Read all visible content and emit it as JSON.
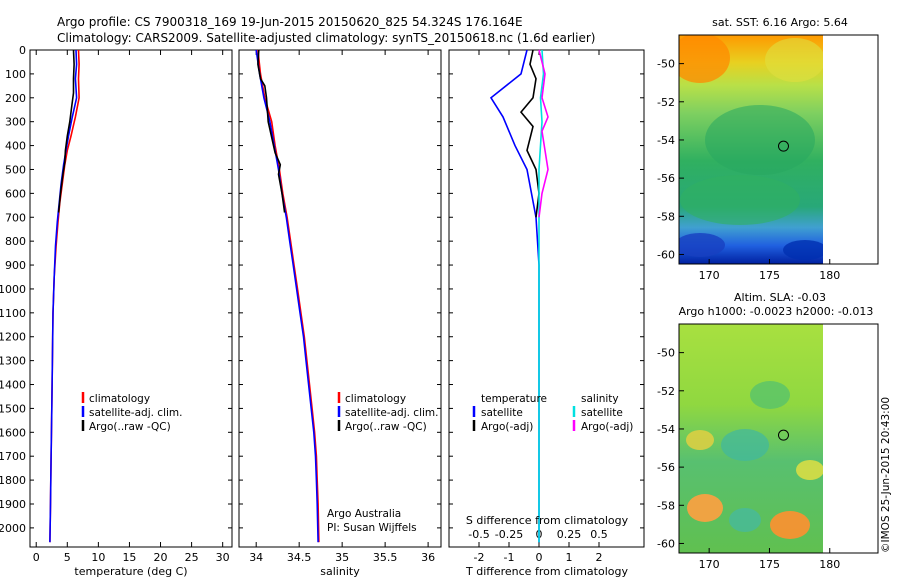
{
  "header": {
    "line1": "Argo profile: CS 7900318_169 19-Jun-2015 20150620_825 54.324S 176.164E",
    "line2": "Climatology: CARS2009. Satellite-adjusted climatology: synTS_20150618.nc (1.6d earlier)"
  },
  "credit": {
    "org": "Argo Australia",
    "pi": "PI: Susan Wijffels",
    "stamp": "©IMOS 25-Jun-2015 20:43:00"
  },
  "colors": {
    "climatology": "#ff0000",
    "satellite": "#0000ff",
    "argo": "#000000",
    "salinity_satellite": "#00e0e0",
    "salinity_argo": "#ff00ff"
  },
  "chart_data": [
    {
      "type": "line",
      "name": "temperature-profile",
      "xlabel": "temperature (deg C)",
      "xlim": [
        -1,
        31.5
      ],
      "xticks": [
        0,
        5,
        10,
        15,
        20,
        25,
        30
      ],
      "ylim": [
        0,
        2080
      ],
      "yticks": [
        0,
        100,
        200,
        300,
        400,
        500,
        600,
        700,
        800,
        900,
        1000,
        1100,
        1200,
        1300,
        1400,
        1500,
        1600,
        1700,
        1800,
        1900,
        2000
      ],
      "legend": [
        "climatology",
        "satellite-adj. clim.",
        "Argo(..raw -QC)"
      ],
      "series": [
        {
          "name": "climatology",
          "color": "#ff0000",
          "points": [
            [
              6.8,
              0
            ],
            [
              6.9,
              60
            ],
            [
              6.8,
              120
            ],
            [
              6.9,
              200
            ],
            [
              6.3,
              280
            ],
            [
              5.6,
              360
            ],
            [
              5.0,
              420
            ],
            [
              4.6,
              480
            ],
            [
              4.2,
              560
            ],
            [
              3.8,
              640
            ],
            [
              3.5,
              720
            ],
            [
              3.2,
              820
            ],
            [
              2.9,
              950
            ],
            [
              2.7,
              1100
            ],
            [
              2.6,
              1300
            ],
            [
              2.5,
              1500
            ],
            [
              2.4,
              1700
            ],
            [
              2.3,
              1900
            ],
            [
              2.2,
              2060
            ]
          ]
        },
        {
          "name": "satellite-adj. clim.",
          "color": "#0000ff",
          "points": [
            [
              6.4,
              0
            ],
            [
              6.5,
              60
            ],
            [
              6.3,
              120
            ],
            [
              6.5,
              200
            ],
            [
              5.8,
              280
            ],
            [
              5.2,
              360
            ],
            [
              4.8,
              420
            ],
            [
              4.4,
              480
            ],
            [
              4.0,
              560
            ],
            [
              3.7,
              640
            ],
            [
              3.4,
              720
            ],
            [
              3.1,
              820
            ],
            [
              2.9,
              950
            ],
            [
              2.7,
              1100
            ],
            [
              2.6,
              1300
            ],
            [
              2.5,
              1500
            ],
            [
              2.4,
              1700
            ],
            [
              2.3,
              1900
            ],
            [
              2.2,
              2060
            ]
          ]
        },
        {
          "name": "Argo(..raw -QC)",
          "color": "#000000",
          "points": [
            [
              6.0,
              0
            ],
            [
              6.1,
              60
            ],
            [
              6.0,
              120
            ],
            [
              6.0,
              180
            ],
            [
              5.7,
              240
            ],
            [
              5.4,
              300
            ],
            [
              5.0,
              360
            ],
            [
              4.7,
              420
            ],
            [
              4.6,
              470
            ],
            [
              4.3,
              520
            ],
            [
              3.9,
              600
            ],
            [
              3.6,
              680
            ]
          ]
        }
      ]
    },
    {
      "type": "line",
      "name": "salinity-profile",
      "xlabel": "salinity",
      "xlim": [
        33.8,
        36.15
      ],
      "xticks": [
        34,
        34.5,
        35,
        35.5,
        36
      ],
      "ylim": [
        0,
        2080
      ],
      "legend": [
        "climatology",
        "satellite-adj. clim.",
        "Argo(..raw -QC)"
      ],
      "series": [
        {
          "name": "climatology",
          "color": "#ff0000",
          "points": [
            [
              34.02,
              0
            ],
            [
              34.05,
              100
            ],
            [
              34.1,
              200
            ],
            [
              34.18,
              300
            ],
            [
              34.22,
              400
            ],
            [
              34.27,
              500
            ],
            [
              34.31,
              600
            ],
            [
              34.36,
              700
            ],
            [
              34.4,
              800
            ],
            [
              34.44,
              900
            ],
            [
              34.48,
              1000
            ],
            [
              34.52,
              1100
            ],
            [
              34.56,
              1200
            ],
            [
              34.59,
              1300
            ],
            [
              34.62,
              1400
            ],
            [
              34.65,
              1500
            ],
            [
              34.68,
              1600
            ],
            [
              34.7,
              1700
            ],
            [
              34.71,
              1800
            ],
            [
              34.72,
              1900
            ],
            [
              34.73,
              2060
            ]
          ]
        },
        {
          "name": "satellite-adj. clim.",
          "color": "#0000ff",
          "points": [
            [
              34.0,
              0
            ],
            [
              34.04,
              100
            ],
            [
              34.09,
              200
            ],
            [
              34.16,
              300
            ],
            [
              34.21,
              400
            ],
            [
              34.26,
              500
            ],
            [
              34.3,
              600
            ],
            [
              34.35,
              700
            ],
            [
              34.39,
              800
            ],
            [
              34.43,
              900
            ],
            [
              34.47,
              1000
            ],
            [
              34.51,
              1100
            ],
            [
              34.55,
              1200
            ],
            [
              34.58,
              1300
            ],
            [
              34.61,
              1400
            ],
            [
              34.64,
              1500
            ],
            [
              34.67,
              1600
            ],
            [
              34.69,
              1700
            ],
            [
              34.7,
              1800
            ],
            [
              34.71,
              1900
            ],
            [
              34.72,
              2060
            ]
          ]
        },
        {
          "name": "Argo(..raw -QC)",
          "color": "#000000",
          "points": [
            [
              34.03,
              0
            ],
            [
              34.02,
              60
            ],
            [
              34.05,
              120
            ],
            [
              34.1,
              150
            ],
            [
              34.12,
              200
            ],
            [
              34.14,
              300
            ],
            [
              34.22,
              430
            ],
            [
              34.28,
              480
            ],
            [
              34.26,
              520
            ],
            [
              34.3,
              600
            ],
            [
              34.33,
              680
            ]
          ]
        }
      ]
    },
    {
      "type": "line",
      "name": "difference-profile",
      "xlabel": "T difference from climatology",
      "xlabel_top": "S difference from climatology",
      "xlim": [
        -3,
        3.5
      ],
      "xticks": [
        -2,
        -1,
        0,
        1,
        2
      ],
      "xticks_top": [
        "-0.5",
        "-0.25",
        "0",
        "0.25",
        "0.5"
      ],
      "ylim": [
        0,
        2080
      ],
      "legend_left": [
        "temperature",
        "satellite",
        "Argo(-adj)"
      ],
      "legend_right": [
        "salinity",
        "satellite",
        "Argo(-adj)"
      ],
      "series": [
        {
          "name": "temperature satellite",
          "color": "#0000ff",
          "points": [
            [
              -0.4,
              0
            ],
            [
              -0.6,
              100
            ],
            [
              -1.6,
              200
            ],
            [
              -1.2,
              280
            ],
            [
              -0.8,
              400
            ],
            [
              -0.4,
              500
            ],
            [
              -0.1,
              700
            ],
            [
              0,
              900
            ],
            [
              0,
              2060
            ]
          ]
        },
        {
          "name": "temperature Argo(-adj)",
          "color": "#000000",
          "points": [
            [
              -0.2,
              0
            ],
            [
              -0.3,
              60
            ],
            [
              -0.1,
              120
            ],
            [
              -0.2,
              200
            ],
            [
              -0.6,
              260
            ],
            [
              -0.2,
              320
            ],
            [
              -0.4,
              420
            ],
            [
              -0.1,
              500
            ],
            [
              0,
              600
            ],
            [
              -0.1,
              700
            ]
          ]
        },
        {
          "name": "salinity satellite",
          "color": "#00e0e0",
          "points": [
            [
              0.1,
              0
            ],
            [
              0.15,
              100
            ],
            [
              0.05,
              200
            ],
            [
              0.1,
              300
            ],
            [
              0.05,
              400
            ],
            [
              0,
              500
            ],
            [
              0,
              700
            ],
            [
              0,
              2060
            ]
          ]
        },
        {
          "name": "salinity Argo(-adj)",
          "color": "#ff00ff",
          "points": [
            [
              0,
              0
            ],
            [
              0.2,
              100
            ],
            [
              0.1,
              200
            ],
            [
              0.3,
              280
            ],
            [
              0.1,
              340
            ],
            [
              0.2,
              420
            ],
            [
              0.3,
              500
            ],
            [
              0.1,
              600
            ],
            [
              0,
              700
            ]
          ]
        }
      ]
    },
    {
      "type": "heatmap",
      "name": "sst-map",
      "title": "sat. SST: 6.16 Argo: 5.64",
      "xlim": [
        167.5,
        184
      ],
      "xticks": [
        170,
        175,
        180
      ],
      "ylim": [
        -60.5,
        -48.5
      ],
      "yticks": [
        -50,
        -52,
        -54,
        -56,
        -58,
        -60
      ],
      "marker": [
        176.164,
        -54.324
      ]
    },
    {
      "type": "heatmap",
      "name": "sla-map",
      "title": "Altim. SLA: -0.03",
      "subtitle": "Argo h1000: -0.0023 h2000: -0.013",
      "xlim": [
        167.5,
        184
      ],
      "xticks": [
        170,
        175,
        180
      ],
      "ylim": [
        -60.5,
        -48.5
      ],
      "yticks": [
        -50,
        -52,
        -54,
        -56,
        -58,
        -60
      ],
      "marker": [
        176.164,
        -54.324
      ]
    }
  ]
}
